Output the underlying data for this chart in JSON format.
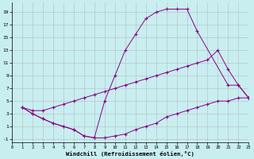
{
  "xlabel": "Windchill (Refroidissement éolien,°C)",
  "bg_color": "#c8eef0",
  "grid_color": "#b0b0b0",
  "line_color": "#880088",
  "line1_x": [
    1,
    2,
    3,
    4,
    5,
    6,
    7,
    8,
    9,
    10,
    11,
    12,
    13,
    14,
    15,
    16,
    17,
    18,
    19,
    20,
    21,
    22,
    23
  ],
  "line1_y": [
    4,
    3,
    2.2,
    1.5,
    1.0,
    0.5,
    -0.5,
    -0.8,
    -0.8,
    -0.5,
    -0.2,
    0.5,
    1.0,
    1.5,
    2.5,
    3.0,
    3.5,
    4.0,
    4.5,
    5.0,
    5.0,
    5.5,
    5.5
  ],
  "line2_x": [
    1,
    2,
    3,
    4,
    5,
    6,
    7,
    8,
    9,
    10,
    11,
    12,
    13,
    14,
    15,
    16,
    17,
    18,
    21,
    22,
    23
  ],
  "line2_y": [
    4,
    3,
    2.2,
    1.5,
    1.0,
    0.5,
    -0.5,
    -0.8,
    5.0,
    9.0,
    13.0,
    15.5,
    18.0,
    19.0,
    19.5,
    19.5,
    19.5,
    16.0,
    7.5,
    7.5,
    5.5
  ],
  "line3_x": [
    1,
    2,
    3,
    4,
    5,
    6,
    7,
    8,
    9,
    10,
    11,
    12,
    13,
    14,
    15,
    16,
    17,
    18,
    19,
    20,
    21,
    22,
    23
  ],
  "line3_y": [
    4,
    3.5,
    3.5,
    4.0,
    4.5,
    5.0,
    5.5,
    6.0,
    6.5,
    7.0,
    7.5,
    8.0,
    8.5,
    9.0,
    9.5,
    10.0,
    10.5,
    11.0,
    11.5,
    13.0,
    10.0,
    7.5,
    5.5
  ],
  "xlim": [
    0,
    23
  ],
  "ylim": [
    -1.5,
    20.5
  ],
  "xticks": [
    0,
    1,
    2,
    3,
    4,
    5,
    6,
    7,
    8,
    9,
    10,
    11,
    12,
    13,
    14,
    15,
    16,
    17,
    18,
    19,
    20,
    21,
    22,
    23
  ],
  "yticks": [
    -1,
    1,
    3,
    5,
    7,
    9,
    11,
    13,
    15,
    17,
    19
  ]
}
